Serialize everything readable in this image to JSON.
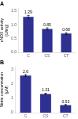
{
  "chart_data": [
    {
      "type": "bar",
      "title": "A",
      "categories": [
        "C",
        "CS",
        "CT"
      ],
      "values": [
        1.29,
        0.85,
        0.68
      ],
      "errors": [
        0.05,
        0.04,
        0.03
      ],
      "ylabel": "eNOS activity\n(U/mg)",
      "ylim": [
        0,
        1.6
      ],
      "yticks": [
        {
          "value": 0,
          "label": "0.0"
        },
        0.5,
        {
          "value": 1.0,
          "label": "1.0"
        },
        1.5
      ],
      "color": "#2e3192",
      "data_labels": true,
      "grid": false
    },
    {
      "type": "bar",
      "title": "B",
      "categories": [
        "C",
        "CS",
        "CT"
      ],
      "values": [
        2.6,
        1.31,
        0.53
      ],
      "errors": [
        0.07,
        0.05,
        0.04
      ],
      "ylabel": "Nitrite concentration\n(μM)",
      "ylim": [
        0,
        3.2
      ],
      "yticks": [
        0,
        1,
        2,
        3
      ],
      "color": "#2e3192",
      "data_labels": true,
      "grid": false
    }
  ]
}
